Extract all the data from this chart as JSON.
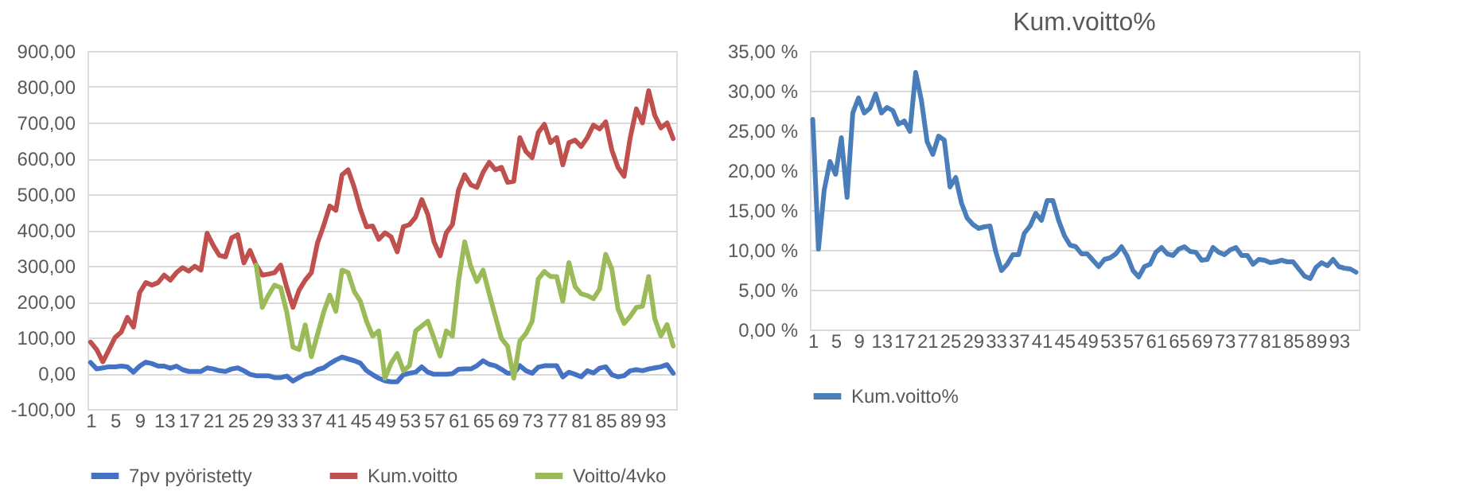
{
  "chart_data": [
    {
      "type": "line",
      "categories": [
        "1",
        null,
        null,
        null,
        "5",
        null,
        null,
        null,
        "9",
        null,
        null,
        null,
        "13",
        null,
        null,
        null,
        "17",
        null,
        null,
        null,
        "21",
        null,
        null,
        null,
        "25",
        null,
        null,
        null,
        "29",
        null,
        null,
        null,
        "33",
        null,
        null,
        null,
        "37",
        null,
        null,
        null,
        "41",
        null,
        null,
        null,
        "45",
        null,
        null,
        null,
        "49",
        null,
        null,
        null,
        "53",
        null,
        null,
        null,
        "57",
        null,
        null,
        null,
        "61",
        null,
        null,
        null,
        "65",
        null,
        null,
        null,
        "69",
        null,
        null,
        null,
        "73",
        null,
        null,
        null,
        "77",
        null,
        null,
        null,
        "81",
        null,
        null,
        null,
        "85",
        null,
        null,
        null,
        "89",
        null,
        null,
        null,
        "93",
        null,
        null,
        null
      ],
      "series": [
        {
          "name": "7pv pyöristetty",
          "color": "#4472c4",
          "values": [
            30,
            12,
            15,
            18,
            18,
            20,
            18,
            3,
            20,
            31,
            27,
            20,
            20,
            14,
            20,
            10,
            5,
            5,
            5,
            15,
            12,
            7,
            5,
            12,
            15,
            7,
            -3,
            -7,
            -7,
            -7,
            -12,
            -12,
            -8,
            -22,
            -12,
            -3,
            0,
            10,
            15,
            27,
            37,
            45,
            40,
            35,
            28,
            7,
            -4,
            -14,
            -21,
            -24,
            -24,
            -4,
            0,
            3,
            18,
            3,
            -3,
            -3,
            -3,
            -1,
            11,
            12,
            12,
            21,
            35,
            25,
            21,
            11,
            0,
            0,
            21,
            7,
            0,
            17,
            21,
            21,
            21,
            -10,
            3,
            -3,
            -10,
            7,
            1,
            14,
            18,
            -4,
            -10,
            -7,
            7,
            10,
            7,
            12,
            15,
            18,
            24,
            0
          ]
        },
        {
          "name": "Kum.voitto",
          "color": "#c0504d",
          "values": [
            87,
            66,
            32,
            66,
            100,
            115,
            156,
            129,
            225,
            253,
            246,
            253,
            274,
            260,
            281,
            295,
            285,
            299,
            288,
            391,
            357,
            329,
            325,
            378,
            387,
            308,
            343,
            302,
            274,
            277,
            281,
            302,
            239,
            184,
            232,
            260,
            281,
            364,
            412,
            467,
            455,
            554,
            568,
            519,
            457,
            409,
            411,
            374,
            392,
            381,
            339,
            409,
            415,
            436,
            485,
            443,
            367,
            328,
            392,
            415,
            512,
            554,
            526,
            519,
            561,
            589,
            568,
            575,
            533,
            536,
            658,
            619,
            602,
            672,
            695,
            644,
            658,
            582,
            644,
            651,
            633,
            658,
            693,
            682,
            702,
            623,
            575,
            550,
            658,
            738,
            699,
            789,
            720,
            685,
            699,
            655
          ]
        },
        {
          "name": "Voitto/4vko",
          "color": "#9bbb59",
          "values": [
            null,
            null,
            null,
            null,
            null,
            null,
            null,
            null,
            null,
            null,
            null,
            null,
            null,
            null,
            null,
            null,
            null,
            null,
            null,
            null,
            null,
            null,
            null,
            null,
            null,
            null,
            null,
            302,
            184,
            218,
            246,
            239,
            170,
            73,
            66,
            135,
            46,
            108,
            170,
            218,
            173,
            288,
            281,
            228,
            201,
            145,
            104,
            118,
            -14,
            28,
            55,
            7,
            21,
            118,
            132,
            145,
            97,
            48,
            118,
            104,
            256,
            367,
            298,
            256,
            288,
            222,
            159,
            97,
            76,
            -14,
            90,
            111,
            145,
            263,
            284,
            270,
            270,
            201,
            309,
            242,
            222,
            217,
            208,
            235,
            332,
            291,
            180,
            139,
            159,
            184,
            187,
            270,
            152,
            104,
            136,
            76
          ]
        }
      ],
      "ylim": [
        -100,
        900
      ],
      "yticks": [
        {
          "value": -100,
          "label": "-100,00"
        },
        {
          "value": 0,
          "label": "0,00"
        },
        {
          "value": 100,
          "label": "100,00"
        },
        {
          "value": 200,
          "label": "200,00"
        },
        {
          "value": 300,
          "label": "300,00"
        },
        {
          "value": 400,
          "label": "400,00"
        },
        {
          "value": 500,
          "label": "500,00"
        },
        {
          "value": 600,
          "label": "600,00"
        },
        {
          "value": 700,
          "label": "700,00"
        },
        {
          "value": 800,
          "label": "800,00"
        },
        {
          "value": 900,
          "label": "900,00"
        }
      ],
      "grid": "y",
      "legend": "bottom"
    },
    {
      "type": "line",
      "title": "Kum.voitto%",
      "categories": [
        "1",
        null,
        null,
        null,
        "5",
        null,
        null,
        null,
        "9",
        null,
        null,
        null,
        "13",
        null,
        null,
        null,
        "17",
        null,
        null,
        null,
        "21",
        null,
        null,
        null,
        "25",
        null,
        null,
        null,
        "29",
        null,
        null,
        null,
        "33",
        null,
        null,
        null,
        "37",
        null,
        null,
        null,
        "41",
        null,
        null,
        null,
        "45",
        null,
        null,
        null,
        "49",
        null,
        null,
        null,
        "53",
        null,
        null,
        null,
        "57",
        null,
        null,
        null,
        "61",
        null,
        null,
        null,
        "65",
        null,
        null,
        null,
        "69",
        null,
        null,
        null,
        "73",
        null,
        null,
        null,
        "77",
        null,
        null,
        null,
        "81",
        null,
        null,
        null,
        "85",
        null,
        null,
        null,
        "89",
        null,
        null,
        null,
        "93",
        null,
        null,
        null
      ],
      "series": [
        {
          "name": "Kum.voitto%",
          "color": "#4a7ebb",
          "values": [
            26.4,
            10.1,
            17.5,
            21.1,
            19.5,
            24.1,
            16.6,
            27.2,
            29.1,
            27.2,
            27.8,
            29.6,
            27.2,
            27.9,
            27.5,
            25.8,
            26.2,
            24.9,
            32.3,
            28.8,
            23.6,
            22.0,
            24.3,
            23.8,
            17.9,
            19.1,
            15.9,
            14.0,
            13.2,
            12.7,
            12.9,
            13.0,
            9.8,
            7.4,
            8.2,
            9.4,
            9.4,
            12.1,
            13.0,
            14.6,
            13.7,
            16.2,
            16.2,
            13.7,
            11.8,
            10.6,
            10.4,
            9.5,
            9.5,
            8.7,
            7.9,
            8.8,
            9.0,
            9.5,
            10.4,
            9.2,
            7.4,
            6.6,
            7.9,
            8.2,
            9.7,
            10.3,
            9.5,
            9.3,
            10.1,
            10.4,
            9.8,
            9.7,
            8.7,
            8.8,
            10.3,
            9.7,
            9.4,
            10.0,
            10.3,
            9.3,
            9.3,
            8.2,
            8.8,
            8.7,
            8.4,
            8.5,
            8.7,
            8.5,
            8.5,
            7.6,
            6.7,
            6.4,
            7.8,
            8.4,
            8.0,
            8.8,
            7.9,
            7.7,
            7.6,
            7.2
          ]
        }
      ],
      "ylim": [
        0,
        35
      ],
      "yticks": [
        {
          "value": 0,
          "label": "0,00 %"
        },
        {
          "value": 5,
          "label": "5,00 %"
        },
        {
          "value": 10,
          "label": "10,00 %"
        },
        {
          "value": 15,
          "label": "15,00 %"
        },
        {
          "value": 20,
          "label": "20,00 %"
        },
        {
          "value": 25,
          "label": "25,00 %"
        },
        {
          "value": 30,
          "label": "30,00 %"
        },
        {
          "value": 35,
          "label": "35,00 %"
        }
      ],
      "grid": "y",
      "legend": "bottom"
    }
  ]
}
